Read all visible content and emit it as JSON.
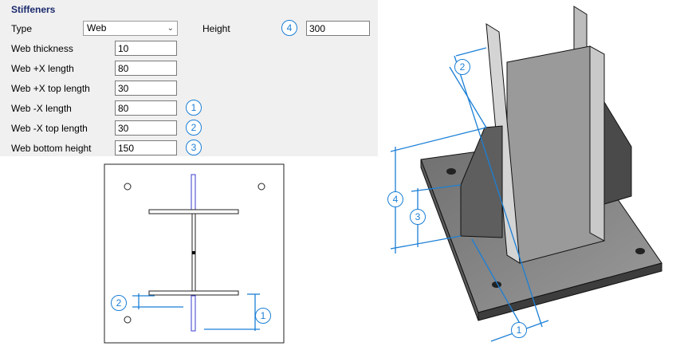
{
  "panel": {
    "title": "Stiffeners",
    "type_label": "Type",
    "type_value": "Web",
    "height_label": "Height",
    "height_value": "300",
    "web_thickness_label": "Web thickness",
    "web_thickness_value": "10",
    "web_px_length_label": "Web +X length",
    "web_px_length_value": "80",
    "web_px_top_length_label": "Web +X top length",
    "web_px_top_length_value": "30",
    "web_nx_length_label": "Web -X length",
    "web_nx_length_value": "80",
    "web_nx_top_length_label": "Web -X top length",
    "web_nx_top_length_value": "30",
    "web_bottom_height_label": "Web bottom height",
    "web_bottom_height_value": "150"
  },
  "callouts": {
    "c1": "1",
    "c2": "2",
    "c3": "3",
    "c4": "4"
  },
  "colors": {
    "accent": "#1b7fd6",
    "title": "#1a2a6c",
    "panel": "#f0f0f0"
  },
  "icons": {
    "type_dropdown": "chevron-down-icon"
  }
}
